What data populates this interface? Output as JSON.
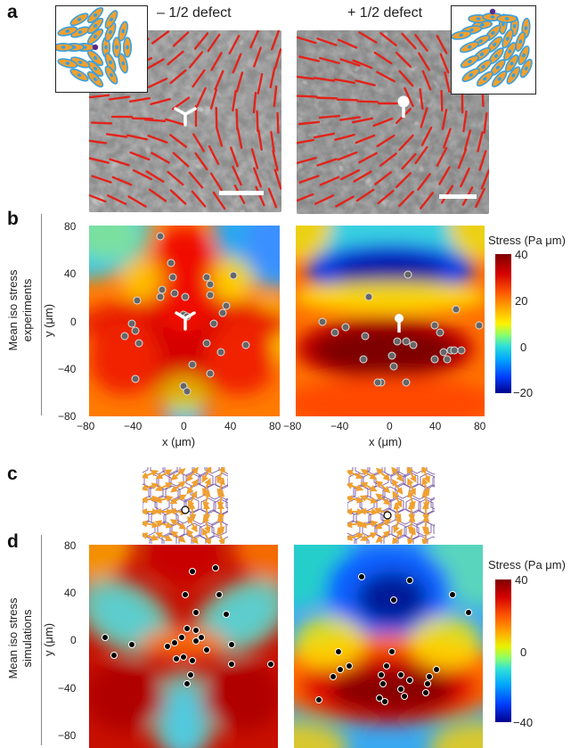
{
  "panels": {
    "a": "a",
    "b": "b",
    "c": "c",
    "d": "d"
  },
  "titles": {
    "minus": "– 1/2 defect",
    "plus": "+ 1/2 defect"
  },
  "row_labels": {
    "experiments_line1": "Mean iso stress",
    "experiments_line2": "experiments",
    "simulations_line1": "Mean iso stress",
    "simulations_line2": "simulations"
  },
  "axes": {
    "x_label": "x (μm)",
    "y_label": "y (μm)",
    "b_x_ticks_left": [
      "−80",
      "−40",
      "0",
      "40",
      "80"
    ],
    "b_x_ticks_right": [
      "−80",
      "−40",
      "0",
      "40",
      "80"
    ],
    "b_y_ticks": [
      "80",
      "40",
      "0",
      "−40",
      "−80"
    ],
    "d_y_ticks": [
      "80",
      "40",
      "0",
      "−40",
      "−80"
    ]
  },
  "colorbars": {
    "b": {
      "title": "Stress (Pa μm)",
      "ticks": [
        "40",
        "20",
        "0",
        "−20"
      ],
      "max": 40,
      "min": -20
    },
    "d": {
      "title": "Stress (Pa μm)",
      "ticks": [
        "40",
        "0",
        "−40"
      ],
      "max": 40,
      "min": -40
    }
  },
  "colors": {
    "director": "#e2231a",
    "cell_orange": "#f0a030",
    "cell_blue": "#3aa0e0",
    "cell_edge": "#7a5aa8",
    "defect_dot": "#5a2a8a",
    "map_red": "#d7191c",
    "map_darkred": "#8b0000",
    "map_blue": "#1f3fd0"
  }
}
